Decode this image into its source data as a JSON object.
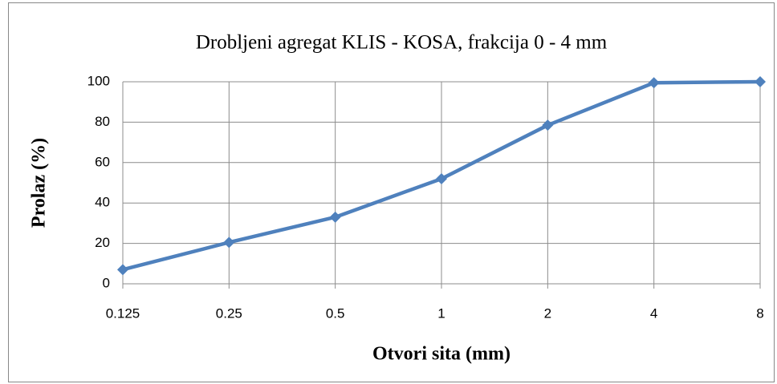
{
  "chart_data": {
    "type": "line",
    "title": "Drobljeni agregat KLIS - KOSA, frakcija 0 - 4 mm",
    "x_label": "Otvori sita (mm)",
    "y_label": "Prolaz (%)",
    "categories": [
      "0.125",
      "0.25",
      "0.5",
      "1",
      "2",
      "4",
      "8"
    ],
    "values": [
      7,
      20.5,
      33,
      52,
      78.5,
      99.5,
      100
    ],
    "color": "#4f81bd",
    "ylim": [
      0,
      100
    ],
    "yticks": [
      0,
      20,
      40,
      60,
      80,
      100
    ],
    "grid": true
  }
}
